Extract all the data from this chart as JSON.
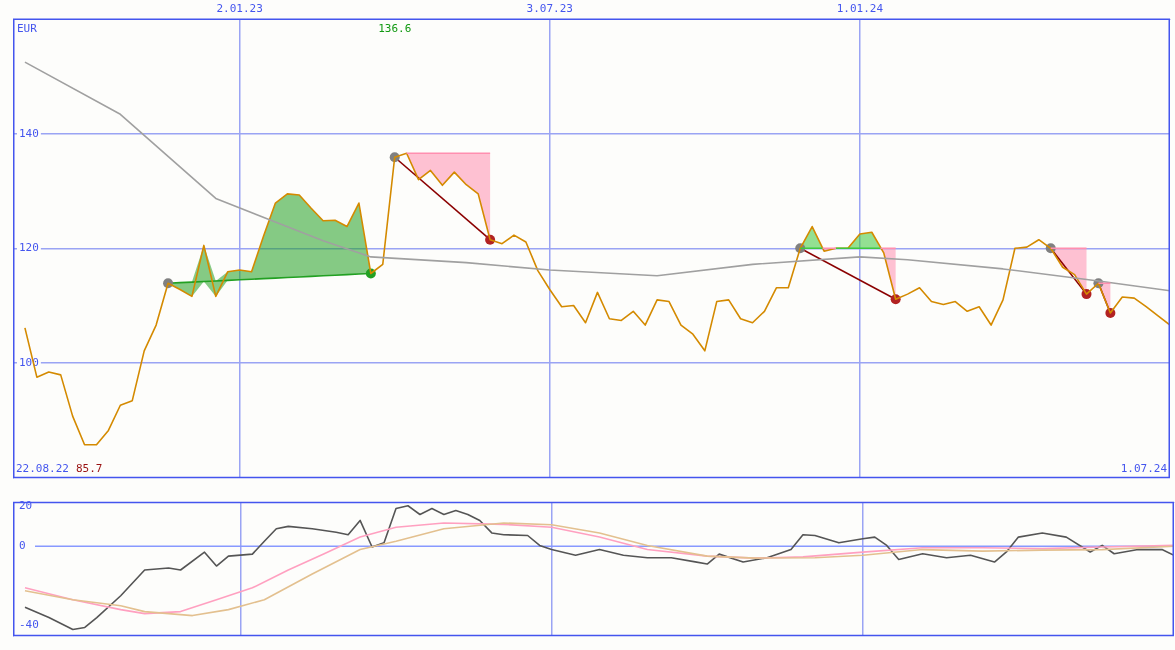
{
  "chart_data": [
    {
      "type": "line",
      "ylabel": "EUR",
      "grid": true,
      "x": [
        "2022-08-29",
        "2022-09-05",
        "2022-09-12",
        "2022-09-19",
        "2022-09-26",
        "2022-10-03",
        "2022-10-10",
        "2022-10-17",
        "2022-10-24",
        "2022-10-31",
        "2022-11-07",
        "2022-11-14",
        "2022-11-21",
        "2022-11-28",
        "2022-12-05",
        "2022-12-12",
        "2022-12-19",
        "2022-12-26",
        "2023-01-02",
        "2023-01-09",
        "2023-01-16",
        "2023-01-23",
        "2023-01-30",
        "2023-02-06",
        "2023-02-13",
        "2023-02-20",
        "2023-02-27",
        "2023-03-06",
        "2023-03-13",
        "2023-03-20",
        "2023-03-27",
        "2023-04-03",
        "2023-04-10",
        "2023-04-17",
        "2023-04-24",
        "2023-05-01",
        "2023-05-08",
        "2023-05-15",
        "2023-05-22",
        "2023-05-29",
        "2023-06-05",
        "2023-06-12",
        "2023-06-19",
        "2023-06-26",
        "2023-07-03",
        "2023-07-10",
        "2023-07-17",
        "2023-07-24",
        "2023-07-31",
        "2023-08-07",
        "2023-08-14",
        "2023-08-21",
        "2023-08-28",
        "2023-09-04",
        "2023-09-11",
        "2023-09-18",
        "2023-09-25",
        "2023-10-02",
        "2023-10-09",
        "2023-10-16",
        "2023-10-23",
        "2023-10-30",
        "2023-11-06",
        "2023-11-13",
        "2023-11-20",
        "2023-11-27",
        "2023-12-04",
        "2023-12-11",
        "2023-12-18",
        "2023-12-25",
        "2024-01-01",
        "2024-01-08",
        "2024-01-15",
        "2024-01-22",
        "2024-01-29",
        "2024-02-05",
        "2024-02-12",
        "2024-02-19",
        "2024-02-26",
        "2024-03-04",
        "2024-03-11",
        "2024-03-18",
        "2024-03-25",
        "2024-04-01",
        "2024-04-08",
        "2024-04-15",
        "2024-04-22",
        "2024-04-29",
        "2024-05-06",
        "2024-05-13",
        "2024-05-20",
        "2024-05-27",
        "2024-06-03",
        "2024-06-10",
        "2024-06-17",
        "2024-06-24",
        "2024-07-01"
      ],
      "xlim": [
        "2022-08-22",
        "2024-07-01"
      ],
      "xticks": [
        {
          "value": "2023-01-02",
          "label": "2.01.23"
        },
        {
          "value": "2023-07-03",
          "label": "3.07.23"
        },
        {
          "value": "2024-01-01",
          "label": "1.01.24"
        }
      ],
      "ylim": [
        80,
        160
      ],
      "yticks": [
        100,
        120,
        140
      ],
      "annotations": [
        "136.6",
        "22.08.22",
        "85.7",
        "1.07.24"
      ],
      "series": [
        {
          "type": "line",
          "color": "#ff8fb0",
          "x": [
            "2023-04-10",
            "2023-04-17",
            "2023-04-24",
            "2023-05-01",
            "2023-05-08",
            "2023-05-15",
            "2023-05-22",
            "2023-05-29"
          ],
          "values": [
            136.6,
            136.6,
            136.6,
            136.6,
            136.6,
            136.6,
            136.6,
            136.6
          ],
          "lower": [
            136.6,
            132.0,
            133.6,
            131.0,
            133.3,
            131.1,
            129.5,
            121.5
          ],
          "upper": [
            136.6,
            136.6,
            136.6,
            136.6,
            136.6,
            136.6,
            136.6,
            136.6
          ]
        },
        {
          "type": "line",
          "color": "#3cc83c",
          "x": [
            "2023-11-27",
            "2023-12-04",
            "2023-12-10"
          ],
          "values": [
            120.0,
            120.0,
            120.0
          ],
          "lower": [
            120.0,
            120.0,
            120.0
          ],
          "upper": [
            120.0,
            123.8,
            120.0
          ]
        },
        {
          "type": "line",
          "color": "#ff8fb0",
          "x": [
            "2023-12-10",
            "2023-12-11",
            "2023-12-18"
          ],
          "values": [
            120.0,
            120.0,
            120.0
          ],
          "lower": [
            120.0,
            119.5,
            120.0
          ],
          "upper": [
            120.0,
            120.0,
            120.0
          ]
        },
        {
          "type": "line",
          "color": "#3cc83c",
          "x": [
            "2023-12-18",
            "2023-12-25",
            "2024-01-01",
            "2024-01-08",
            "2024-01-13"
          ],
          "values": [
            120.0,
            120.0,
            120.0,
            120.0,
            120.0
          ],
          "lower": [
            120.0,
            120.0,
            120.0,
            120.0,
            120.0
          ],
          "upper": [
            120.0,
            120.0,
            122.5,
            122.8,
            120.0
          ]
        },
        {
          "type": "line",
          "color": "#ff8fb0",
          "x": [
            "2024-01-13",
            "2024-01-15",
            "2024-01-22"
          ],
          "values": [
            120.0,
            120.0,
            120.0
          ],
          "lower": [
            120.0,
            119.2,
            111.1
          ],
          "upper": [
            120.0,
            120.0,
            120.0
          ]
        },
        {
          "type": "line",
          "color": "#ff8fb0",
          "x": [
            "2024-04-22",
            "2024-04-29",
            "2024-05-06",
            "2024-05-13"
          ],
          "values": [
            120.0,
            120.0,
            120.0,
            120.0
          ],
          "lower": [
            120.0,
            116.7,
            115.4,
            112.0
          ],
          "upper": [
            120.0,
            120.0,
            120.0,
            120.0
          ]
        },
        {
          "type": "line",
          "color": "#ff8fb0",
          "x": [
            "2024-05-20",
            "2024-05-27"
          ],
          "values": [
            113.9,
            113.9
          ],
          "lower": [
            113.9,
            108.7
          ],
          "upper": [
            113.9,
            113.9
          ]
        },
        {
          "type": "line",
          "color": "#a0a0a0",
          "x": [
            "2022-08-29",
            "2022-10-24",
            "2022-12-19",
            "2023-02-20",
            "2023-03-20",
            "2023-05-15",
            "2023-07-03",
            "2023-09-04",
            "2023-10-30",
            "2024-01-01",
            "2024-01-29",
            "2024-03-25",
            "2024-05-20",
            "2024-07-01"
          ],
          "values": [
            152.5,
            143.4,
            128.7,
            121.3,
            118.5,
            117.5,
            116.2,
            115.2,
            117.2,
            118.5,
            118.0,
            116.4,
            114.3,
            112.6
          ]
        },
        {
          "type": "line",
          "color": "#d48a00",
          "values": [
            106.1,
            97.5,
            98.4,
            97.9,
            90.7,
            85.7,
            85.7,
            88.2,
            92.6,
            93.4,
            102.1,
            106.6,
            113.9,
            112.8,
            111.6,
            120.5,
            111.6,
            115.9,
            116.2,
            115.9,
            122.1,
            127.9,
            129.5,
            129.3,
            127.0,
            124.8,
            124.9,
            123.8,
            127.9,
            115.6,
            117.2,
            135.9,
            136.6,
            132.0,
            133.6,
            131.0,
            133.3,
            131.1,
            129.5,
            121.5,
            120.8,
            122.3,
            121.1,
            116.1,
            112.8,
            109.8,
            110.0,
            107.0,
            112.3,
            107.7,
            107.4,
            109.0,
            106.6,
            111.0,
            110.7,
            106.6,
            105.0,
            102.1,
            110.7,
            111.0,
            107.7,
            107.0,
            109.0,
            113.1,
            113.1,
            120.0,
            123.8,
            119.5,
            120.0,
            120.0,
            122.5,
            122.8,
            119.2,
            111.1,
            112.0,
            113.1,
            110.7,
            110.2,
            110.7,
            109.0,
            109.8,
            106.6,
            111.0,
            120.0,
            120.2,
            121.5,
            120.0,
            116.7,
            115.4,
            112.0,
            113.9,
            108.7,
            111.5,
            111.3,
            109.8,
            108.2,
            106.6
          ]
        },
        {
          "type": "scatter",
          "marker": "circle",
          "colors": [
            "#808080",
            "#22a022"
          ],
          "x": [
            "2022-11-21",
            "2023-03-20"
          ],
          "values": [
            113.9,
            115.6
          ]
        },
        {
          "type": "line",
          "color": "#22a022",
          "x": [
            "2022-11-21",
            "2022-11-28",
            "2022-12-05",
            "2022-12-12",
            "2022-12-19",
            "2022-12-26",
            "2023-01-02",
            "2023-01-09",
            "2023-01-16",
            "2023-01-23",
            "2023-01-30",
            "2023-02-06",
            "2023-02-13",
            "2023-02-20",
            "2023-02-27",
            "2023-03-06",
            "2023-03-13",
            "2023-03-20"
          ],
          "values": [
            113.9,
            114.0,
            114.1,
            114.2,
            114.3,
            114.4,
            114.5,
            114.6,
            114.7,
            114.8,
            114.9,
            115.0,
            115.1,
            115.2,
            115.3,
            115.4,
            115.5,
            115.6
          ],
          "lower": [
            113.9,
            112.8,
            111.6,
            114.2,
            111.6,
            114.4,
            114.5,
            114.6,
            114.7,
            114.8,
            114.9,
            115.0,
            115.1,
            115.2,
            115.3,
            115.4,
            115.5,
            115.6
          ],
          "upper": [
            113.9,
            114.0,
            114.1,
            120.5,
            114.3,
            115.9,
            116.2,
            115.9,
            122.1,
            127.9,
            129.5,
            129.3,
            127.0,
            124.8,
            124.9,
            123.8,
            127.9,
            115.6
          ]
        },
        {
          "type": "line",
          "color": "#8b0000",
          "marker": "circle",
          "colors": [
            "#808080",
            "#b22222"
          ],
          "x": [
            "2023-04-03",
            "2023-05-29"
          ],
          "values": [
            135.9,
            121.5
          ]
        },
        {
          "type": "line",
          "color": "#8b0000",
          "marker": "circle",
          "colors": [
            "#808080",
            "#b22222"
          ],
          "x": [
            "2023-11-27",
            "2024-01-22"
          ],
          "values": [
            120.0,
            111.1
          ]
        },
        {
          "type": "line",
          "color": "#8b0000",
          "marker": "circle",
          "colors": [
            "#808080",
            "#b22222"
          ],
          "x": [
            "2024-04-22",
            "2024-05-13"
          ],
          "values": [
            120.0,
            112.0
          ]
        },
        {
          "type": "line",
          "color": "#8b0000",
          "marker": "circle",
          "colors": [
            "#808080",
            "#b22222"
          ],
          "x": [
            "2024-05-20",
            "2024-05-27"
          ],
          "values": [
            113.9,
            108.7
          ]
        }
      ]
    },
    {
      "type": "line",
      "grid": "x",
      "tick_labels": "y",
      "xlim": [
        "2022-08-22",
        "2024-07-01"
      ],
      "xticks": [
        {
          "value": "2023-01-02",
          "label": null
        },
        {
          "value": "2023-07-03",
          "label": null
        },
        {
          "value": "2024-01-01",
          "label": null
        }
      ],
      "ylim": [
        -45,
        22
      ],
      "yticks": [
        -40,
        0,
        20
      ],
      "ref_lines": [
        {
          "axis": "y",
          "value": 0,
          "color": "#8899ff"
        }
      ],
      "series": [
        {
          "type": "line",
          "color": "#e3c08f",
          "x": [
            "2022-08-29",
            "2022-09-26",
            "2022-10-24",
            "2022-11-07",
            "2022-12-05",
            "2022-12-26",
            "2023-01-16",
            "2023-02-13",
            "2023-03-13",
            "2023-04-03",
            "2023-05-01",
            "2023-06-05",
            "2023-07-03",
            "2023-07-31",
            "2023-08-28",
            "2023-10-02",
            "2023-10-30",
            "2023-12-04",
            "2024-01-01",
            "2024-02-05",
            "2024-03-11",
            "2024-04-15",
            "2024-05-20",
            "2024-07-01"
          ],
          "values": [
            -22.5,
            -27,
            -30,
            -33,
            -35,
            -32,
            -27,
            -14,
            -1.7,
            2.5,
            8.8,
            11.7,
            10.8,
            6.7,
            0.4,
            -5,
            -6,
            -5.8,
            -4.6,
            -1.7,
            -2.5,
            -2,
            -1.7,
            0
          ]
        },
        {
          "type": "line",
          "color": "#ffa0c0",
          "x": [
            "2022-08-29",
            "2022-09-26",
            "2022-10-24",
            "2022-11-07",
            "2022-11-28",
            "2022-12-19",
            "2023-01-09",
            "2023-01-30",
            "2023-02-20",
            "2023-03-13",
            "2023-04-03",
            "2023-05-01",
            "2023-06-05",
            "2023-07-03",
            "2023-07-31",
            "2023-08-28",
            "2023-10-02",
            "2023-10-30",
            "2023-11-27",
            "2024-01-01",
            "2024-02-05",
            "2024-03-11",
            "2024-04-15",
            "2024-05-20",
            "2024-07-01"
          ],
          "values": [
            -21,
            -27,
            -32,
            -34,
            -33,
            -27,
            -21,
            -12,
            -3.8,
            4.6,
            9.6,
            11.7,
            11,
            9.6,
            4.6,
            -1.7,
            -5,
            -6,
            -5.4,
            -3,
            -0.8,
            -0.8,
            -1.2,
            -0.4,
            0.4
          ]
        },
        {
          "type": "line",
          "color": "#555555",
          "x": [
            "2022-08-29",
            "2022-09-12",
            "2022-09-26",
            "2022-10-03",
            "2022-10-10",
            "2022-10-24",
            "2022-11-07",
            "2022-11-21",
            "2022-11-28",
            "2022-12-12",
            "2022-12-19",
            "2022-12-26",
            "2023-01-09",
            "2023-01-16",
            "2023-01-23",
            "2023-01-30",
            "2023-02-13",
            "2023-02-27",
            "2023-03-06",
            "2023-03-13",
            "2023-03-20",
            "2023-03-27",
            "2023-04-03",
            "2023-04-10",
            "2023-04-17",
            "2023-04-24",
            "2023-05-01",
            "2023-05-08",
            "2023-05-15",
            "2023-05-22",
            "2023-05-29",
            "2023-06-05",
            "2023-06-19",
            "2023-06-26",
            "2023-07-03",
            "2023-07-17",
            "2023-07-31",
            "2023-08-14",
            "2023-08-28",
            "2023-09-11",
            "2023-09-25",
            "2023-10-02",
            "2023-10-09",
            "2023-10-23",
            "2023-11-06",
            "2023-11-20",
            "2023-11-27",
            "2023-12-04",
            "2023-12-18",
            "2024-01-01",
            "2024-01-08",
            "2024-01-15",
            "2024-01-22",
            "2024-02-05",
            "2024-02-19",
            "2024-03-04",
            "2024-03-18",
            "2024-03-25",
            "2024-04-01",
            "2024-04-15",
            "2024-04-29",
            "2024-05-13",
            "2024-05-20",
            "2024-05-27",
            "2024-06-10",
            "2024-06-24",
            "2024-07-01"
          ],
          "values": [
            -30.8,
            -36,
            -42,
            -41,
            -36,
            -25,
            -12,
            -11,
            -12,
            -3,
            -10,
            -5,
            -4,
            2.5,
            8.8,
            10,
            8.8,
            7,
            5.8,
            13,
            -0.4,
            1.7,
            19,
            20.4,
            16,
            19,
            16,
            18,
            16,
            13,
            6.7,
            5.8,
            5.4,
            0.4,
            -1.7,
            -4.6,
            -1.7,
            -4.6,
            -5.8,
            -5.8,
            -7.9,
            -9,
            -4,
            -8,
            -5.8,
            -1.7,
            5.8,
            5.4,
            1.7,
            3.8,
            4.6,
            0.4,
            -6.7,
            -3.8,
            -5.8,
            -4.6,
            -8,
            -2.9,
            4.6,
            6.7,
            4.6,
            -2.9,
            0.4,
            -3.8,
            -1.7,
            -1.7,
            -4.6
          ]
        }
      ]
    }
  ]
}
